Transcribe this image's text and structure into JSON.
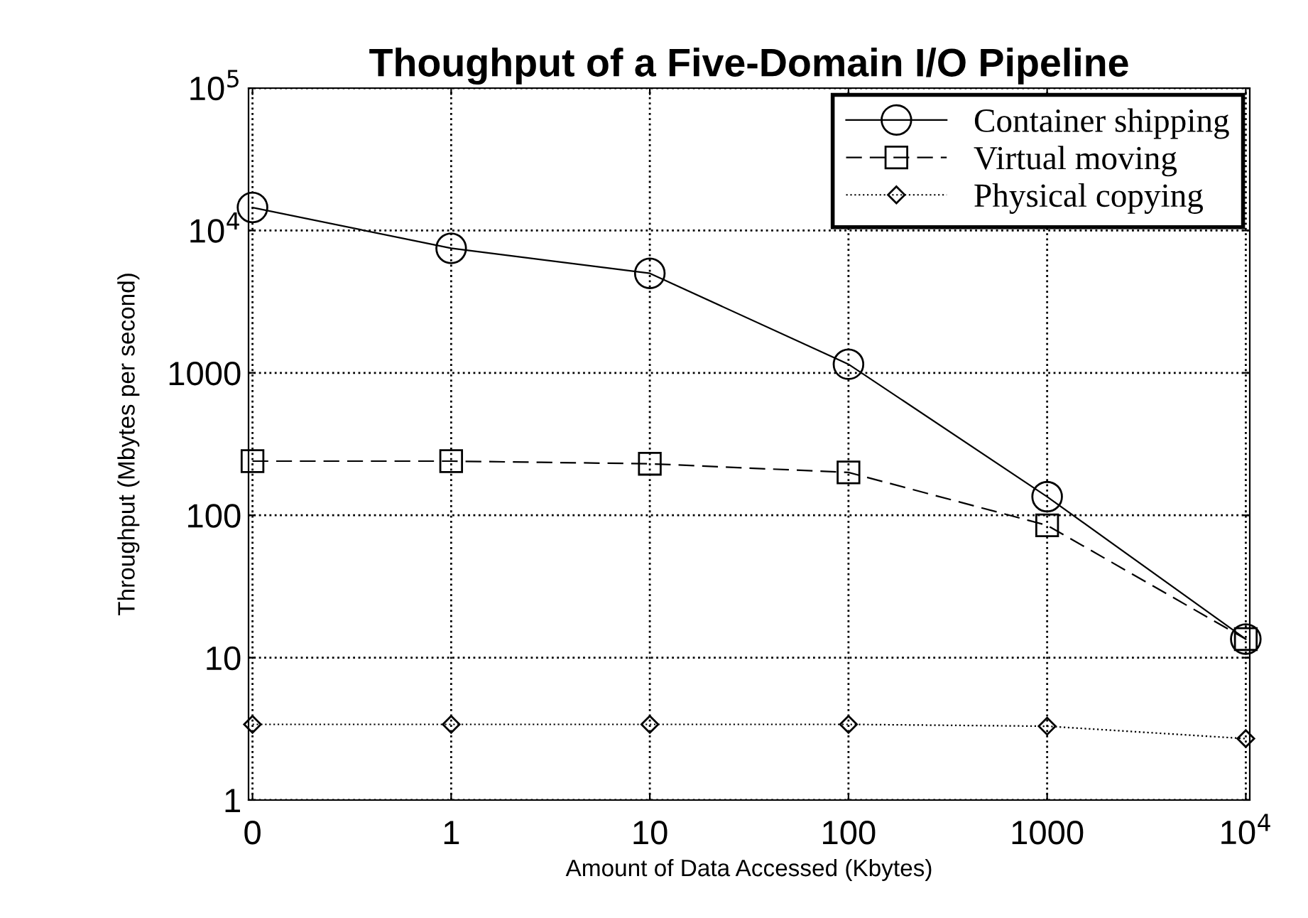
{
  "chart_data": {
    "type": "line",
    "title": "Thoughput of a Five-Domain I/O Pipeline",
    "xlabel": "Amount of Data Accessed (Kbytes)",
    "ylabel": "Throughput (Mbytes per second)",
    "categories": [
      "0",
      "1",
      "10",
      "100",
      "1000",
      "10$^{4}$"
    ],
    "series": [
      {
        "name": "Container shipping",
        "color": "#000000",
        "marker": "circle",
        "line_style": "solid",
        "values": [
          14500,
          7500,
          5000,
          1150,
          135,
          13.5
        ]
      },
      {
        "name": "Virtual moving",
        "color": "#000000",
        "marker": "square",
        "line_style": "dashed",
        "values": [
          240,
          240,
          230,
          200,
          85,
          13.5
        ]
      },
      {
        "name": "Physical copying",
        "color": "#000000",
        "marker": "diamond",
        "line_style": "dotted",
        "values": [
          3.4,
          3.4,
          3.4,
          3.4,
          3.3,
          2.7
        ]
      }
    ],
    "log": "y",
    "ylim": [
      1,
      100000
    ],
    "yticks": [
      1,
      10,
      100,
      1000,
      {
        "value": 10000,
        "label": "10$^{4}$"
      },
      {
        "value": 100000,
        "label": "10$^{5}$"
      }
    ],
    "grid": true,
    "legend": "top right"
  }
}
